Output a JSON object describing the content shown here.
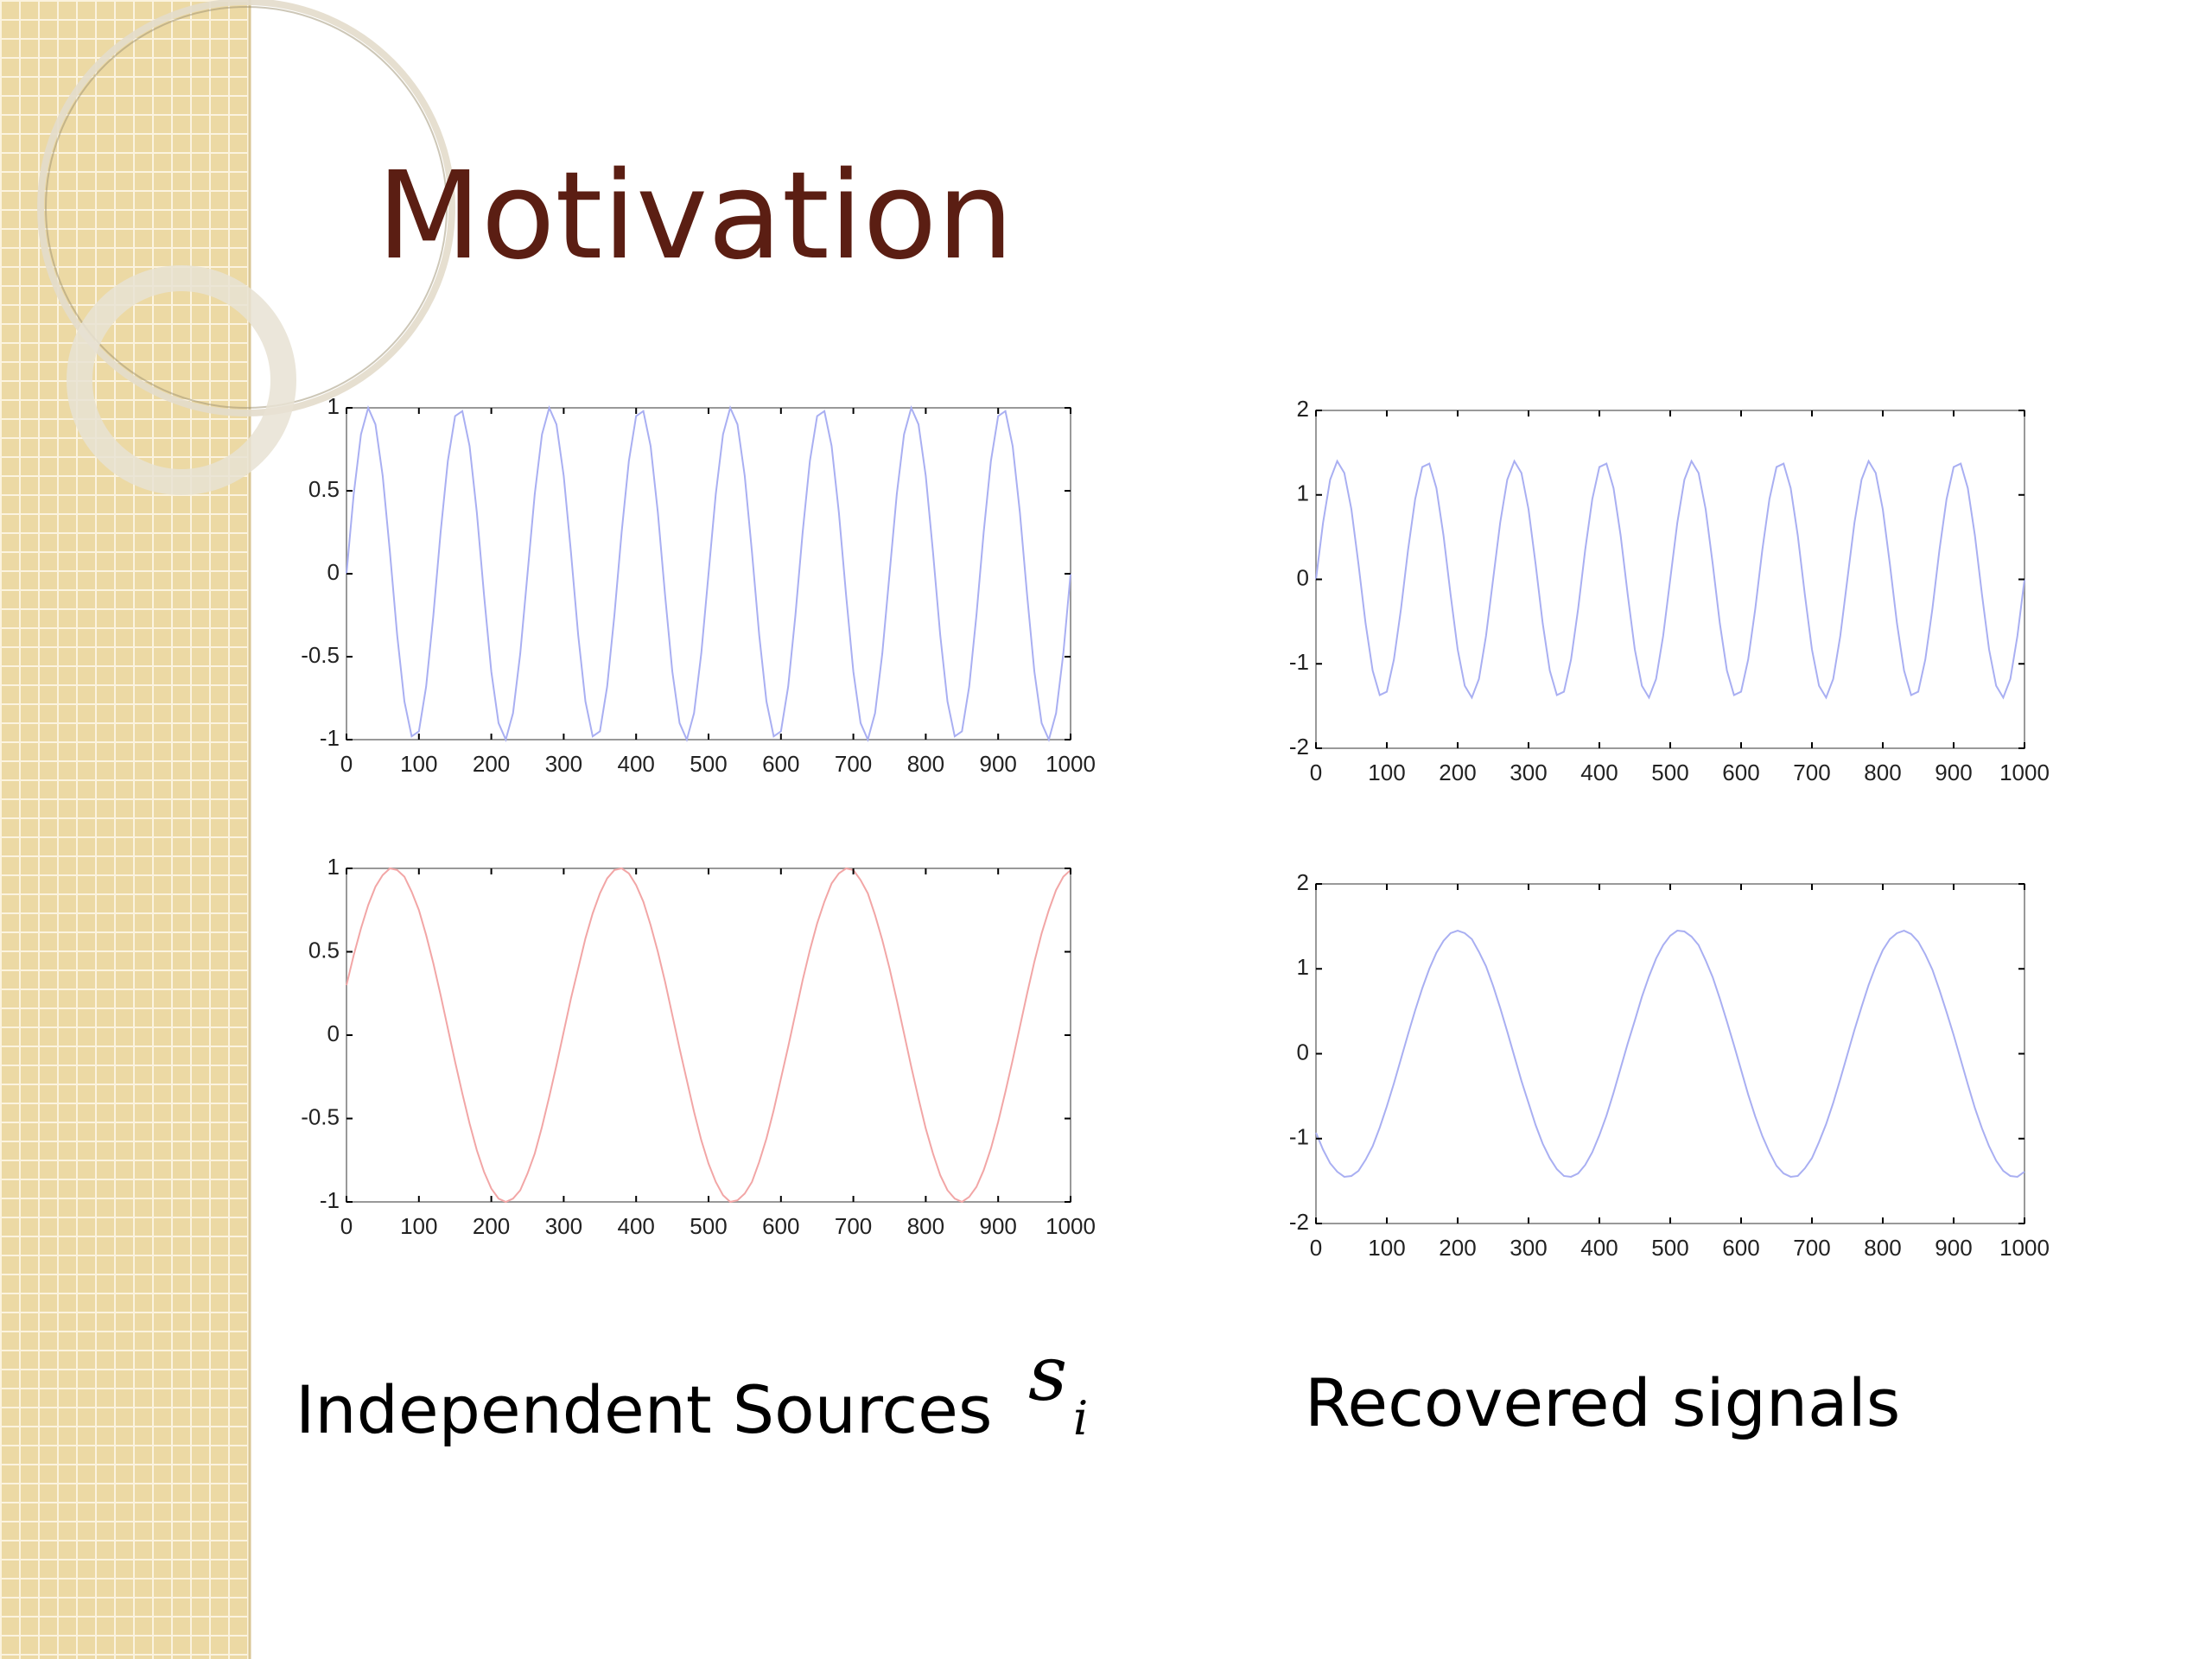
{
  "slide": {
    "title": "Motivation",
    "caption_left": "Independent Sources",
    "symbol": {
      "base": "s",
      "subscript": "i"
    },
    "caption_right": "Recovered signals"
  },
  "chart_data": [
    {
      "type": "line",
      "color": "#a9aff2",
      "x": [
        0,
        10,
        20,
        30,
        40,
        50,
        60,
        70,
        80,
        90,
        100,
        110,
        120,
        130,
        140,
        150,
        160,
        170,
        180,
        190,
        200,
        210,
        220,
        230,
        240,
        250,
        260,
        270,
        280,
        290,
        300,
        310,
        320,
        330,
        340,
        350,
        360,
        370,
        380,
        390,
        400,
        410,
        420,
        430,
        440,
        450,
        460,
        470,
        480,
        490,
        500,
        510,
        520,
        530,
        540,
        550,
        560,
        570,
        580,
        590,
        600,
        610,
        620,
        630,
        640,
        650,
        660,
        670,
        680,
        690,
        700,
        710,
        720,
        730,
        740,
        750,
        760,
        770,
        780,
        790,
        800,
        810,
        820,
        830,
        840,
        850,
        860,
        870,
        880,
        890,
        900,
        910,
        920,
        930,
        940,
        950,
        960,
        970,
        980,
        990,
        1000
      ],
      "values": [
        0,
        0.48,
        0.84,
        1.0,
        0.9,
        0.59,
        0.13,
        -0.37,
        -0.77,
        -0.98,
        -0.95,
        -0.68,
        -0.25,
        0.25,
        0.68,
        0.95,
        0.98,
        0.77,
        0.37,
        -0.13,
        -0.59,
        -0.9,
        -1.0,
        -0.84,
        -0.48,
        0,
        0.48,
        0.84,
        1.0,
        0.9,
        0.59,
        0.13,
        -0.37,
        -0.77,
        -0.98,
        -0.95,
        -0.68,
        -0.25,
        0.25,
        0.68,
        0.95,
        0.98,
        0.77,
        0.37,
        -0.13,
        -0.59,
        -0.9,
        -1.0,
        -0.84,
        -0.48,
        0,
        0.48,
        0.84,
        1.0,
        0.9,
        0.59,
        0.13,
        -0.37,
        -0.77,
        -0.98,
        -0.95,
        -0.68,
        -0.25,
        0.25,
        0.68,
        0.95,
        0.98,
        0.77,
        0.37,
        -0.13,
        -0.59,
        -0.9,
        -1.0,
        -0.84,
        -0.48,
        0,
        0.48,
        0.84,
        1.0,
        0.9,
        0.59,
        0.13,
        -0.37,
        -0.77,
        -0.98,
        -0.95,
        -0.68,
        -0.25,
        0.25,
        0.68,
        0.95,
        0.98,
        0.77,
        0.37,
        -0.13,
        -0.59,
        -0.9,
        -1.0,
        -0.84,
        -0.48,
        0
      ],
      "xlim": [
        0,
        1000
      ],
      "xticks": [
        0,
        100,
        200,
        300,
        400,
        500,
        600,
        700,
        800,
        900,
        1000
      ],
      "ylim": [
        -1,
        1
      ],
      "yticks": [
        -1,
        -0.5,
        0,
        0.5,
        1
      ]
    },
    {
      "type": "line",
      "color": "#f2a6a6",
      "x": [
        0,
        10,
        20,
        30,
        40,
        50,
        60,
        70,
        80,
        90,
        100,
        110,
        120,
        130,
        140,
        150,
        160,
        170,
        180,
        190,
        200,
        210,
        220,
        230,
        240,
        250,
        260,
        270,
        280,
        290,
        300,
        310,
        320,
        330,
        340,
        350,
        360,
        370,
        380,
        390,
        400,
        410,
        420,
        430,
        440,
        450,
        460,
        470,
        480,
        490,
        500,
        510,
        520,
        530,
        540,
        550,
        560,
        570,
        580,
        590,
        600,
        610,
        620,
        630,
        640,
        650,
        660,
        670,
        680,
        690,
        700,
        710,
        720,
        730,
        740,
        750,
        760,
        770,
        780,
        790,
        800,
        810,
        820,
        830,
        840,
        850,
        860,
        870,
        880,
        890,
        900,
        910,
        920,
        930,
        940,
        950,
        960,
        970,
        980,
        990,
        1000
      ],
      "values": [
        0.3,
        0.48,
        0.64,
        0.78,
        0.89,
        0.96,
        1.0,
        0.99,
        0.95,
        0.86,
        0.75,
        0.6,
        0.43,
        0.24,
        0.04,
        -0.16,
        -0.35,
        -0.53,
        -0.69,
        -0.82,
        -0.92,
        -0.98,
        -1.0,
        -0.98,
        -0.93,
        -0.83,
        -0.71,
        -0.55,
        -0.37,
        -0.18,
        0.02,
        0.22,
        0.4,
        0.58,
        0.73,
        0.85,
        0.94,
        0.99,
        1.0,
        0.97,
        0.9,
        0.8,
        0.66,
        0.5,
        0.32,
        0.12,
        -0.08,
        -0.27,
        -0.46,
        -0.63,
        -0.77,
        -0.88,
        -0.96,
        -1.0,
        -0.99,
        -0.95,
        -0.88,
        -0.76,
        -0.62,
        -0.45,
        -0.26,
        -0.07,
        0.13,
        0.33,
        0.51,
        0.67,
        0.8,
        0.91,
        0.97,
        1.0,
        0.99,
        0.93,
        0.85,
        0.72,
        0.57,
        0.4,
        0.21,
        0.01,
        -0.19,
        -0.38,
        -0.56,
        -0.71,
        -0.84,
        -0.93,
        -0.98,
        -1.0,
        -0.97,
        -0.91,
        -0.81,
        -0.68,
        -0.52,
        -0.34,
        -0.15,
        0.05,
        0.25,
        0.44,
        0.61,
        0.75,
        0.87,
        0.95,
        0.99
      ],
      "xlim": [
        0,
        1000
      ],
      "xticks": [
        0,
        100,
        200,
        300,
        400,
        500,
        600,
        700,
        800,
        900,
        1000
      ],
      "ylim": [
        -1,
        1
      ],
      "yticks": [
        -1,
        -0.5,
        0,
        0.5,
        1
      ]
    },
    {
      "type": "line",
      "color": "#a9aff2",
      "x": [
        0,
        10,
        20,
        30,
        40,
        50,
        60,
        70,
        80,
        90,
        100,
        110,
        120,
        130,
        140,
        150,
        160,
        170,
        180,
        190,
        200,
        210,
        220,
        230,
        240,
        250,
        260,
        270,
        280,
        290,
        300,
        310,
        320,
        330,
        340,
        350,
        360,
        370,
        380,
        390,
        400,
        410,
        420,
        430,
        440,
        450,
        460,
        470,
        480,
        490,
        500,
        510,
        520,
        530,
        540,
        550,
        560,
        570,
        580,
        590,
        600,
        610,
        620,
        630,
        640,
        650,
        660,
        670,
        680,
        690,
        700,
        710,
        720,
        730,
        740,
        750,
        760,
        770,
        780,
        790,
        800,
        810,
        820,
        830,
        840,
        850,
        860,
        870,
        880,
        890,
        900,
        910,
        920,
        930,
        940,
        950,
        960,
        970,
        980,
        990,
        1000
      ],
      "values": [
        0,
        0.67,
        1.18,
        1.4,
        1.26,
        0.83,
        0.18,
        -0.52,
        -1.08,
        -1.37,
        -1.33,
        -0.95,
        -0.35,
        0.35,
        0.95,
        1.33,
        1.37,
        1.08,
        0.52,
        -0.18,
        -0.83,
        -1.26,
        -1.4,
        -1.18,
        -0.67,
        0,
        0.67,
        1.18,
        1.4,
        1.26,
        0.83,
        0.18,
        -0.52,
        -1.08,
        -1.37,
        -1.33,
        -0.95,
        -0.35,
        0.35,
        0.95,
        1.33,
        1.37,
        1.08,
        0.52,
        -0.18,
        -0.83,
        -1.26,
        -1.4,
        -1.18,
        -0.67,
        0,
        0.67,
        1.18,
        1.4,
        1.26,
        0.83,
        0.18,
        -0.52,
        -1.08,
        -1.37,
        -1.33,
        -0.95,
        -0.35,
        0.35,
        0.95,
        1.33,
        1.37,
        1.08,
        0.52,
        -0.18,
        -0.83,
        -1.26,
        -1.4,
        -1.18,
        -0.67,
        0,
        0.67,
        1.18,
        1.4,
        1.26,
        0.83,
        0.18,
        -0.52,
        -1.08,
        -1.37,
        -1.33,
        -0.95,
        -0.35,
        0.35,
        0.95,
        1.33,
        1.37,
        1.08,
        0.52,
        -0.18,
        -0.83,
        -1.26,
        -1.4,
        -1.18,
        -0.67,
        0
      ],
      "xlim": [
        0,
        1000
      ],
      "xticks": [
        0,
        100,
        200,
        300,
        400,
        500,
        600,
        700,
        800,
        900,
        1000
      ],
      "ylim": [
        -2,
        2
      ],
      "yticks": [
        -2,
        -1,
        0,
        1,
        2
      ]
    },
    {
      "type": "line",
      "color": "#a9aff2",
      "x": [
        0,
        10,
        20,
        30,
        40,
        50,
        60,
        70,
        80,
        90,
        100,
        110,
        120,
        130,
        140,
        150,
        160,
        170,
        180,
        190,
        200,
        210,
        220,
        230,
        240,
        250,
        260,
        270,
        280,
        290,
        300,
        310,
        320,
        330,
        340,
        350,
        360,
        370,
        380,
        390,
        400,
        410,
        420,
        430,
        440,
        450,
        460,
        470,
        480,
        490,
        500,
        510,
        520,
        530,
        540,
        550,
        560,
        570,
        580,
        590,
        600,
        610,
        620,
        630,
        640,
        650,
        660,
        670,
        680,
        690,
        700,
        710,
        720,
        730,
        740,
        750,
        760,
        770,
        780,
        790,
        800,
        810,
        820,
        830,
        840,
        850,
        860,
        870,
        880,
        890,
        900,
        910,
        920,
        930,
        940,
        950,
        960,
        970,
        980,
        990,
        1000
      ],
      "values": [
        -0.93,
        -1.13,
        -1.29,
        -1.39,
        -1.45,
        -1.44,
        -1.38,
        -1.25,
        -1.09,
        -0.87,
        -0.62,
        -0.35,
        -0.06,
        0.23,
        0.51,
        0.77,
        1.0,
        1.19,
        1.33,
        1.42,
        1.45,
        1.42,
        1.35,
        1.2,
        1.03,
        0.8,
        0.54,
        0.26,
        -0.03,
        -0.32,
        -0.58,
        -0.84,
        -1.06,
        -1.23,
        -1.36,
        -1.44,
        -1.45,
        -1.41,
        -1.31,
        -1.16,
        -0.96,
        -0.73,
        -0.46,
        -0.17,
        0.12,
        0.39,
        0.67,
        0.91,
        1.12,
        1.28,
        1.39,
        1.45,
        1.44,
        1.38,
        1.28,
        1.1,
        0.9,
        0.65,
        0.38,
        0.1,
        -0.19,
        -0.48,
        -0.74,
        -0.97,
        -1.16,
        -1.32,
        -1.41,
        -1.45,
        -1.44,
        -1.35,
        -1.23,
        -1.04,
        -0.83,
        -0.58,
        -0.3,
        -0.01,
        0.28,
        0.55,
        0.81,
        1.03,
        1.22,
        1.35,
        1.42,
        1.45,
        1.41,
        1.32,
        1.17,
        0.99,
        0.75,
        0.49,
        0.22,
        -0.07,
        -0.36,
        -0.64,
        -0.88,
        -1.09,
        -1.26,
        -1.38,
        -1.44,
        -1.45,
        -1.39
      ],
      "xlim": [
        0,
        1000
      ],
      "xticks": [
        0,
        100,
        200,
        300,
        400,
        500,
        600,
        700,
        800,
        900,
        1000
      ],
      "ylim": [
        -2,
        2
      ],
      "yticks": [
        -2,
        -1,
        0,
        1,
        2
      ]
    }
  ]
}
